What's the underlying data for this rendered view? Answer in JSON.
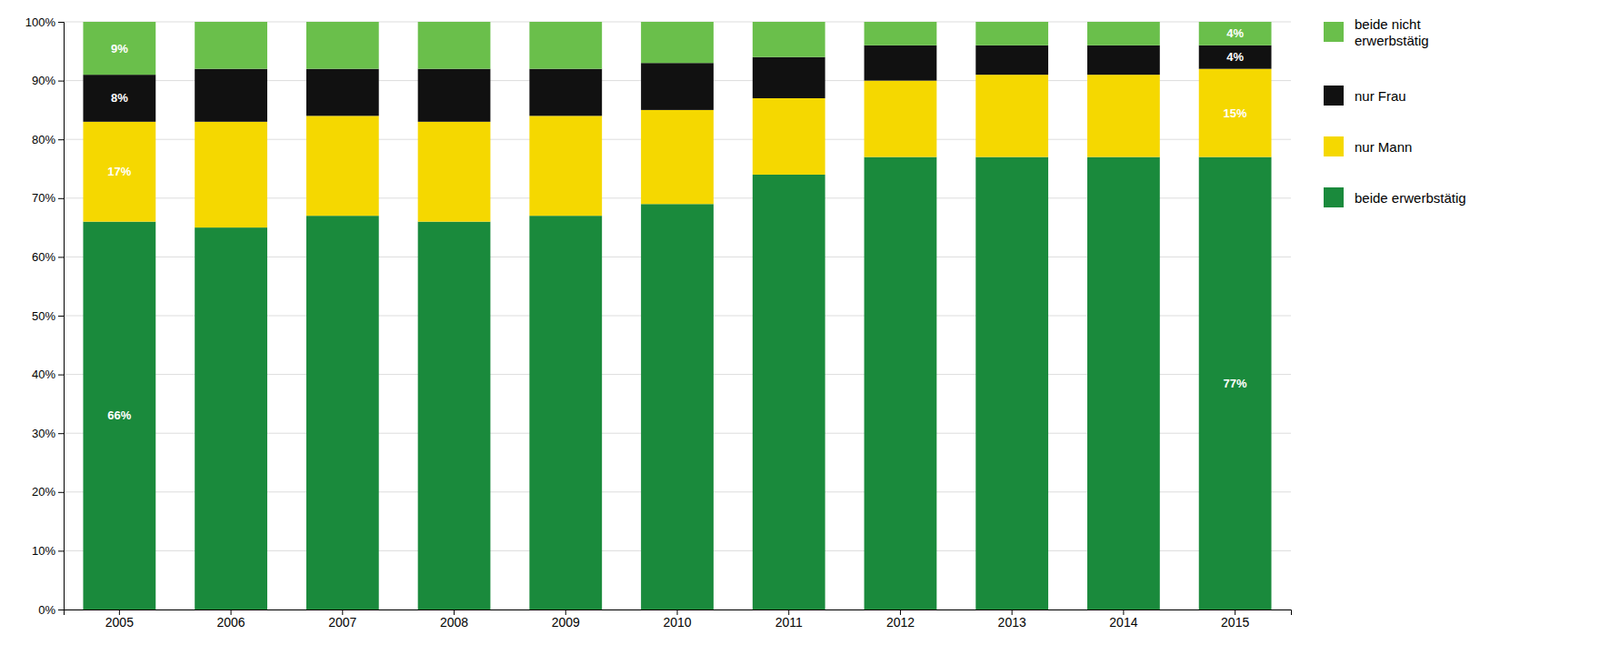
{
  "chart_data": {
    "type": "bar",
    "stacked": true,
    "categories": [
      "2005",
      "2006",
      "2007",
      "2008",
      "2009",
      "2010",
      "2011",
      "2012",
      "2013",
      "2014",
      "2015"
    ],
    "series": [
      {
        "name": "beide erwerbstätig",
        "color": "#1a8a3c",
        "values": [
          66,
          65,
          67,
          66,
          67,
          69,
          74,
          77,
          77,
          77,
          77
        ],
        "value_labels": [
          "66%",
          null,
          null,
          null,
          null,
          null,
          null,
          null,
          null,
          null,
          "77%"
        ]
      },
      {
        "name": "nur Mann",
        "color": "#f5d800",
        "values": [
          17,
          18,
          17,
          17,
          17,
          16,
          13,
          13,
          14,
          14,
          15
        ],
        "value_labels": [
          "17%",
          null,
          null,
          null,
          null,
          null,
          null,
          null,
          null,
          null,
          "15%"
        ]
      },
      {
        "name": "nur Frau",
        "color": "#111111",
        "values": [
          8,
          9,
          8,
          9,
          8,
          8,
          7,
          6,
          5,
          5,
          4
        ],
        "value_labels": [
          "8%",
          null,
          null,
          null,
          null,
          null,
          null,
          null,
          null,
          null,
          "4%"
        ]
      },
      {
        "name": "beide nicht\nerwerbstätig",
        "color": "#6abf4b",
        "values": [
          9,
          8,
          8,
          8,
          8,
          7,
          6,
          4,
          4,
          4,
          4
        ],
        "value_labels": [
          "9%",
          null,
          null,
          null,
          null,
          null,
          null,
          null,
          null,
          null,
          "4%"
        ]
      }
    ],
    "data_labels": true,
    "ylim": [
      0,
      100
    ],
    "yticks": [
      {
        "value": 0,
        "label": "0%"
      },
      {
        "value": 10,
        "label": "10%"
      },
      {
        "value": 20,
        "label": "20%"
      },
      {
        "value": 30,
        "label": "30%"
      },
      {
        "value": 40,
        "label": "40%"
      },
      {
        "value": 50,
        "label": "50%"
      },
      {
        "value": 60,
        "label": "60%"
      },
      {
        "value": 70,
        "label": "70%"
      },
      {
        "value": 80,
        "label": "80%"
      },
      {
        "value": 90,
        "label": "90%"
      },
      {
        "value": 100,
        "label": "100%"
      }
    ],
    "grid": true
  }
}
